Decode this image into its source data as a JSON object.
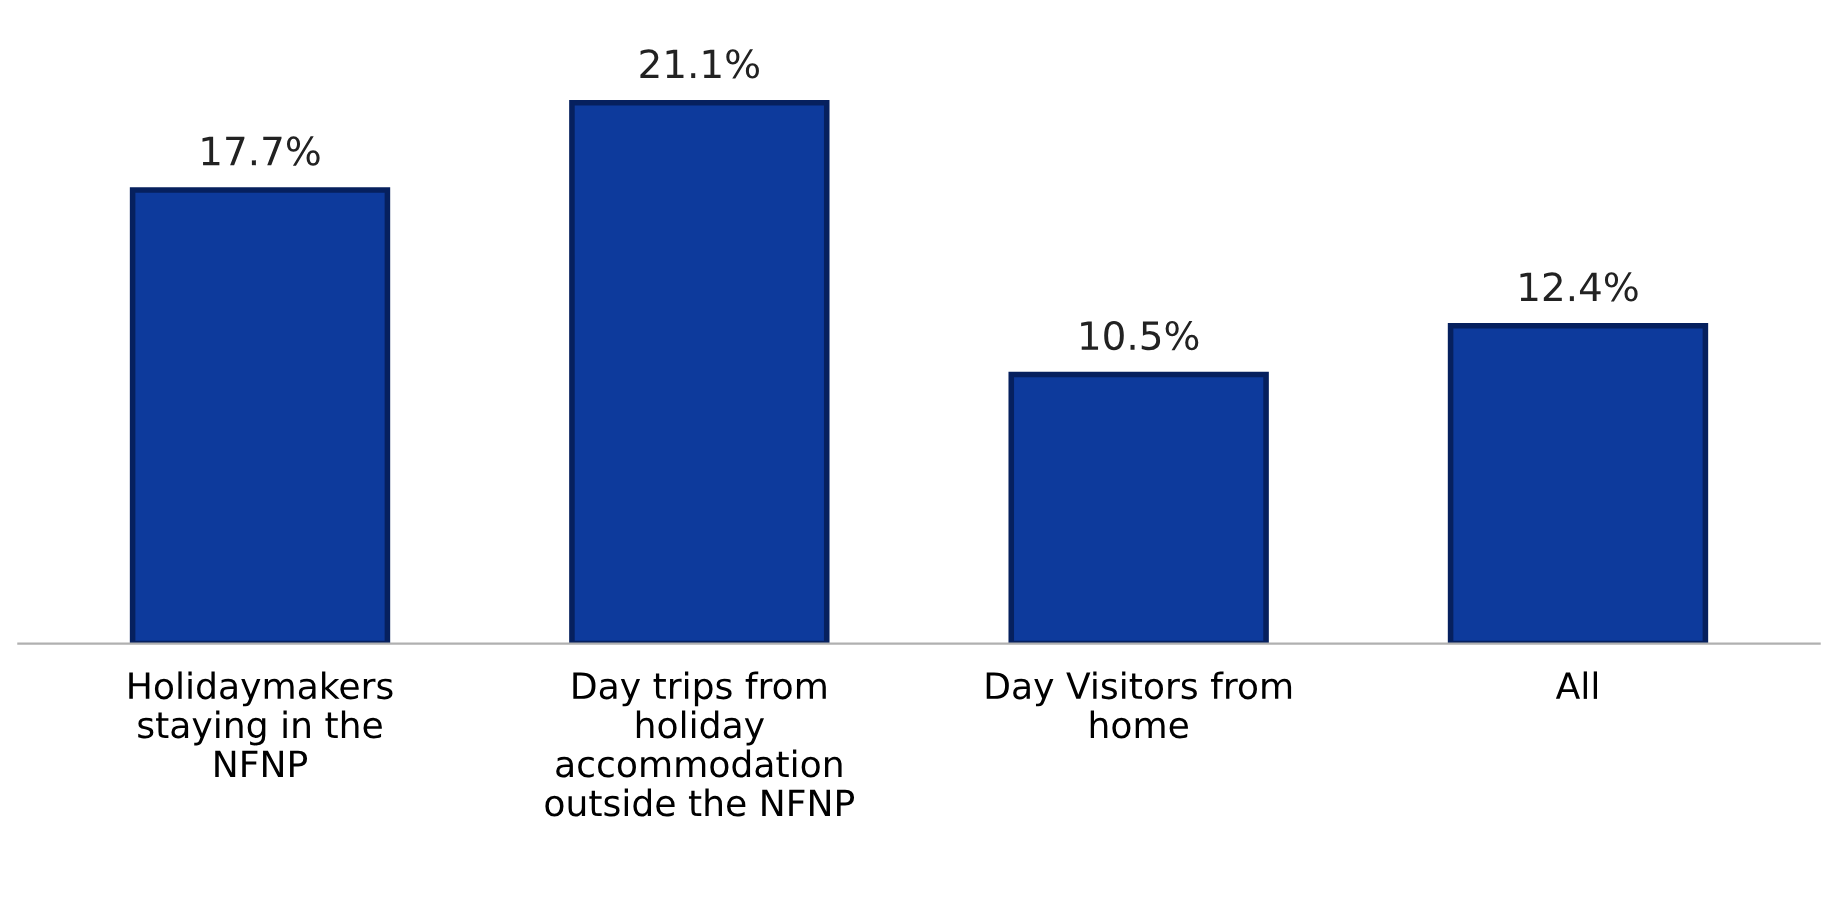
{
  "chart_data": {
    "type": "bar",
    "categories": [
      "Holidaymakers\nstaying in the\nNFNP",
      "Day trips from\nholiday\naccommodation\noutside the NFNP",
      "Day Visitors from\nhome",
      "All"
    ],
    "values": [
      17.7,
      21.1,
      10.5,
      12.4
    ],
    "value_labels": [
      "17.7%",
      "21.1%",
      "10.5%",
      "12.4%"
    ],
    "color": "#0d3a9c",
    "grid": false,
    "legend": false
  }
}
